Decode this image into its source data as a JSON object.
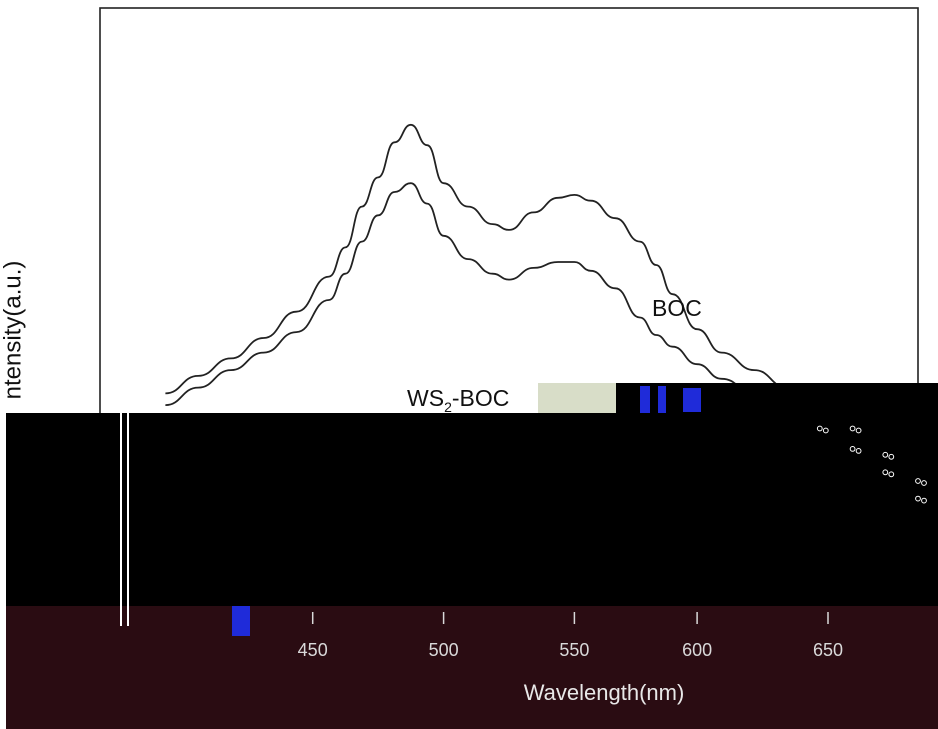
{
  "chart_data": {
    "type": "line",
    "title": "",
    "ylabel": "ntensity(a.u.)",
    "xlabel": "Wavelength(nm)",
    "xlim": [
      0,
      100
    ],
    "ylim": [
      0,
      100
    ],
    "x_ticks": [
      "450",
      "500",
      "550",
      "600",
      "650"
    ],
    "x_tick_values": [
      26,
      42,
      58,
      73,
      89
    ],
    "legend_position": "none",
    "grid": false,
    "series": [
      {
        "name": "BOC",
        "x": [
          8,
          12,
          16,
          20,
          24,
          28,
          30,
          32,
          34,
          36,
          38,
          40,
          42,
          45,
          48,
          50,
          53,
          56,
          58,
          60,
          63,
          66,
          68,
          70,
          73,
          76,
          80,
          84,
          88,
          92,
          96,
          100
        ],
        "y": [
          34,
          37,
          40,
          43.5,
          48,
          54,
          59,
          66,
          71,
          77,
          80,
          76.5,
          70,
          66,
          63,
          62,
          65,
          67.5,
          68,
          67,
          64,
          60,
          56,
          51,
          45,
          41,
          38,
          35,
          32,
          28,
          23.5,
          19
        ]
      },
      {
        "name": "WS2-BOC",
        "x": [
          8,
          12,
          16,
          20,
          24,
          28,
          30,
          32,
          34,
          36,
          38,
          40,
          42,
          45,
          48,
          50,
          53,
          56,
          58,
          60,
          63,
          66,
          68,
          70,
          73,
          76,
          80,
          84,
          88,
          92,
          96,
          100
        ],
        "y": [
          32,
          35,
          38,
          41,
          44.5,
          50,
          54.5,
          60,
          64.5,
          68.5,
          70,
          66.5,
          61,
          57,
          54.5,
          53.5,
          55.5,
          56.5,
          56.5,
          55,
          52,
          47,
          44,
          42,
          39,
          36.5,
          34,
          31,
          28,
          24.5,
          20.5,
          16
        ]
      }
    ],
    "annotations": [
      {
        "text": "BOC",
        "main": "BOC",
        "sub": ""
      },
      {
        "text": "WS2-BOC",
        "main": "WS",
        "sub": "2",
        "tail": "-BOC"
      }
    ],
    "colors": {
      "line": "#222222",
      "frame": "#222222",
      "occlusion": "#000000",
      "occlusion_tint": "#2a0c12",
      "glitch_blue": "#1f2bd9",
      "glitch_pale": "#d8ddc8"
    }
  }
}
